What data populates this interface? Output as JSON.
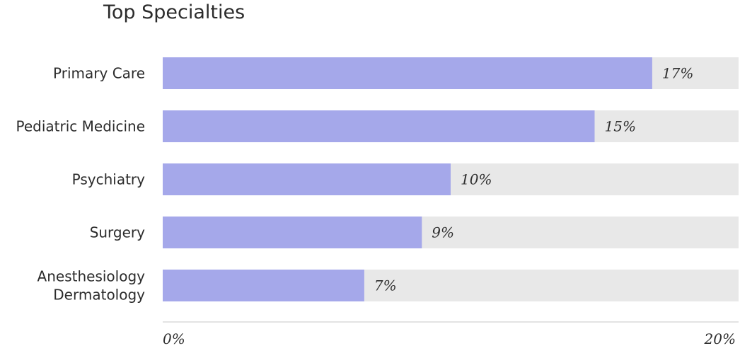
{
  "chart_data": {
    "type": "bar",
    "orientation": "horizontal",
    "title": "Top Specialties",
    "categories": [
      [
        "Primary Care"
      ],
      [
        "Pediatric Medicine"
      ],
      [
        "Psychiatry"
      ],
      [
        "Surgery"
      ],
      [
        "Anesthesiology",
        "Dermatology"
      ]
    ],
    "values": [
      17,
      15,
      10,
      9,
      7
    ],
    "value_labels": [
      "17%",
      "15%",
      "10%",
      "9%",
      "7%"
    ],
    "xlim": [
      0,
      20
    ],
    "x_ticks": [
      "0%",
      "20%"
    ],
    "xlabel": "",
    "ylabel": "",
    "grid": false,
    "colors": {
      "bar": "#a5a8ea",
      "track": "#e8e8e8",
      "axis": "#e3e3e3"
    }
  }
}
